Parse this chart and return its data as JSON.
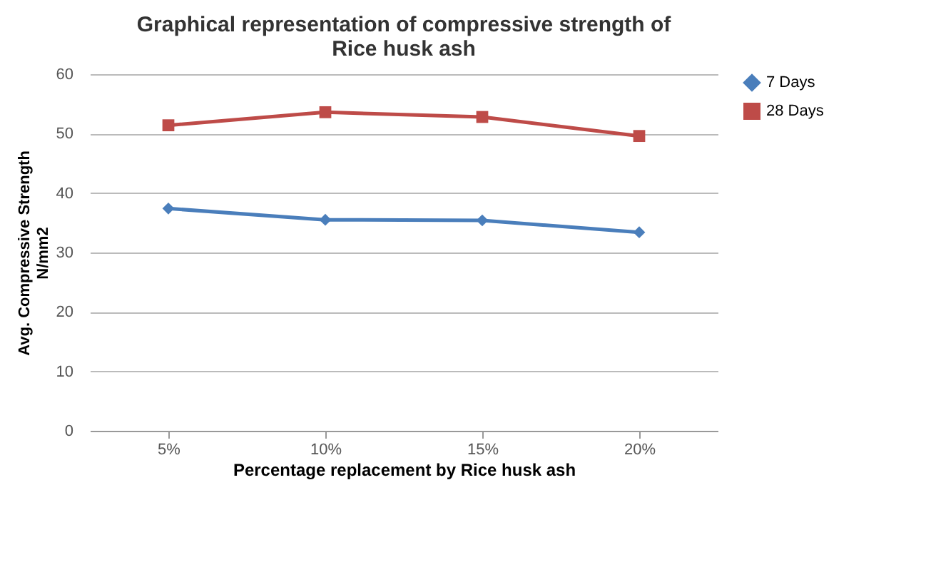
{
  "chart_data": {
    "type": "line",
    "title": "Graphical representation of compressive strength of\nRice husk ash",
    "xlabel": "Percentage replacement by Rice husk ash",
    "ylabel": "Avg. Compressive Strength\nN/mm2",
    "categories": [
      "5%",
      "10%",
      "15%",
      "20%"
    ],
    "series": [
      {
        "name": "7 Days",
        "color": "#4a7ebb",
        "marker": "diamond",
        "values": [
          37.4,
          35.5,
          35.4,
          33.4
        ]
      },
      {
        "name": "28 Days",
        "color": "#be4b48",
        "marker": "square",
        "values": [
          51.4,
          53.6,
          52.8,
          49.6
        ]
      }
    ],
    "ylim": [
      0,
      60
    ],
    "yticks": [
      0,
      10,
      20,
      30,
      40,
      50,
      60
    ],
    "grid": "y",
    "legend": "right"
  }
}
